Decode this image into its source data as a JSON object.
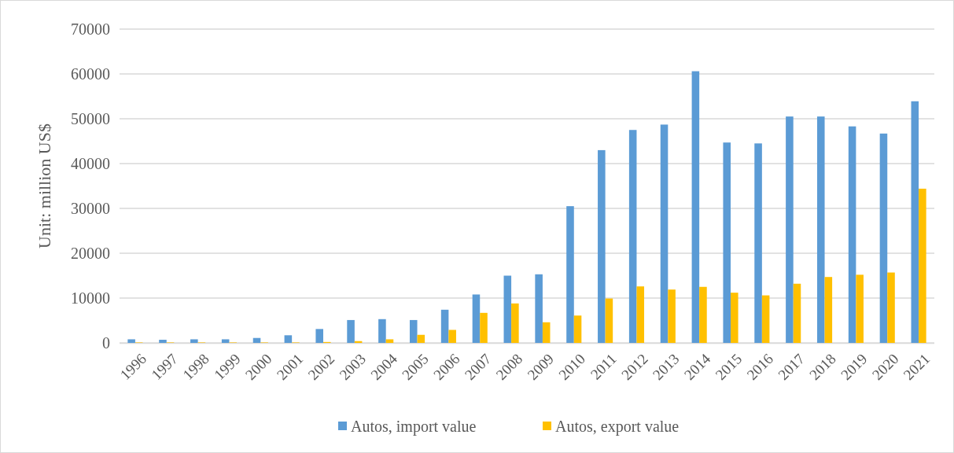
{
  "chart_data": {
    "type": "bar",
    "ylabel": "Unit: million US$",
    "categories": [
      "1996",
      "1997",
      "1998",
      "1999",
      "2000",
      "2001",
      "2002",
      "2003",
      "2004",
      "2005",
      "2006",
      "2007",
      "2008",
      "2009",
      "2010",
      "2011",
      "2012",
      "2013",
      "2014",
      "2015",
      "2016",
      "2017",
      "2018",
      "2019",
      "2020",
      "2021"
    ],
    "series": [
      {
        "name": "Autos, import value",
        "color": "#5b9bd5",
        "values": [
          800,
          700,
          800,
          800,
          1100,
          1700,
          3100,
          5100,
          5300,
          5100,
          7400,
          10800,
          15000,
          15300,
          30500,
          43000,
          47500,
          48700,
          60600,
          44700,
          44500,
          50500,
          50500,
          48300,
          46700,
          53900
        ]
      },
      {
        "name": "Autos, export value",
        "color": "#ffc000",
        "values": [
          100,
          100,
          100,
          100,
          100,
          100,
          200,
          400,
          800,
          1800,
          2900,
          6700,
          8800,
          4600,
          6100,
          9900,
          12600,
          11900,
          12500,
          11200,
          10600,
          13200,
          14700,
          15200,
          15700,
          34400
        ]
      }
    ],
    "ylim": [
      0,
      70000
    ],
    "yticks": [
      0,
      10000,
      20000,
      30000,
      40000,
      50000,
      60000,
      70000
    ],
    "grid": "y",
    "legend": "bottom"
  }
}
